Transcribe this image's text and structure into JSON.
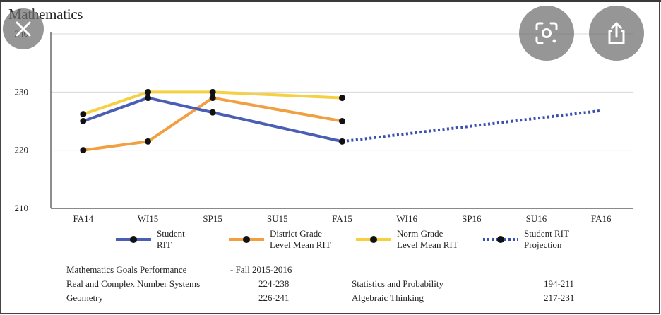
{
  "title": "Mathematics",
  "chart_data": {
    "type": "line",
    "title": "Mathematics",
    "categories": [
      "FA14",
      "WI15",
      "SP15",
      "SU15",
      "FA15",
      "WI16",
      "SP16",
      "SU16",
      "FA16"
    ],
    "ylim": [
      210,
      240
    ],
    "yticks": [
      210,
      220,
      230,
      240
    ],
    "ytick_labels": [
      "210",
      "220",
      "230",
      "240"
    ],
    "grid": true,
    "legend_position": "bottom",
    "series": [
      {
        "name": "Student\nRIT",
        "color": "#4a5eb5",
        "style": "solid",
        "points": [
          [
            "FA14",
            225
          ],
          [
            "WI15",
            229
          ],
          [
            "SP15",
            226.5
          ],
          [
            "FA15",
            221.5
          ]
        ]
      },
      {
        "name": "District Grade\nLevel Mean RIT",
        "color": "#f0a040",
        "style": "solid",
        "points": [
          [
            "FA14",
            220
          ],
          [
            "WI15",
            221.5
          ],
          [
            "SP15",
            229
          ],
          [
            "FA15",
            225
          ]
        ]
      },
      {
        "name": "Norm Grade\nLevel Mean RIT",
        "color": "#f5d040",
        "style": "solid",
        "points": [
          [
            "FA14",
            226.2
          ],
          [
            "WI15",
            230
          ],
          [
            "SP15",
            230
          ],
          [
            "FA15",
            229
          ]
        ]
      },
      {
        "name": "Student RIT\nProjection",
        "color": "#3a50b0",
        "style": "dotted",
        "points": [
          [
            "FA15",
            221.5
          ],
          [
            "FA16",
            226.8
          ]
        ]
      }
    ]
  },
  "goals": {
    "header_label": "Mathematics Goals Performance",
    "header_term": "- Fall 2015-2016",
    "items": [
      {
        "name": "Real and Complex Number Systems",
        "range": "224-238"
      },
      {
        "name": "Statistics and Probability",
        "range": "194-211"
      },
      {
        "name": "Geometry",
        "range": "226-241"
      },
      {
        "name": "Algebraic Thinking",
        "range": "217-231"
      }
    ]
  },
  "overlay_icons": [
    "close-icon",
    "lens-scan-icon",
    "share-icon"
  ]
}
